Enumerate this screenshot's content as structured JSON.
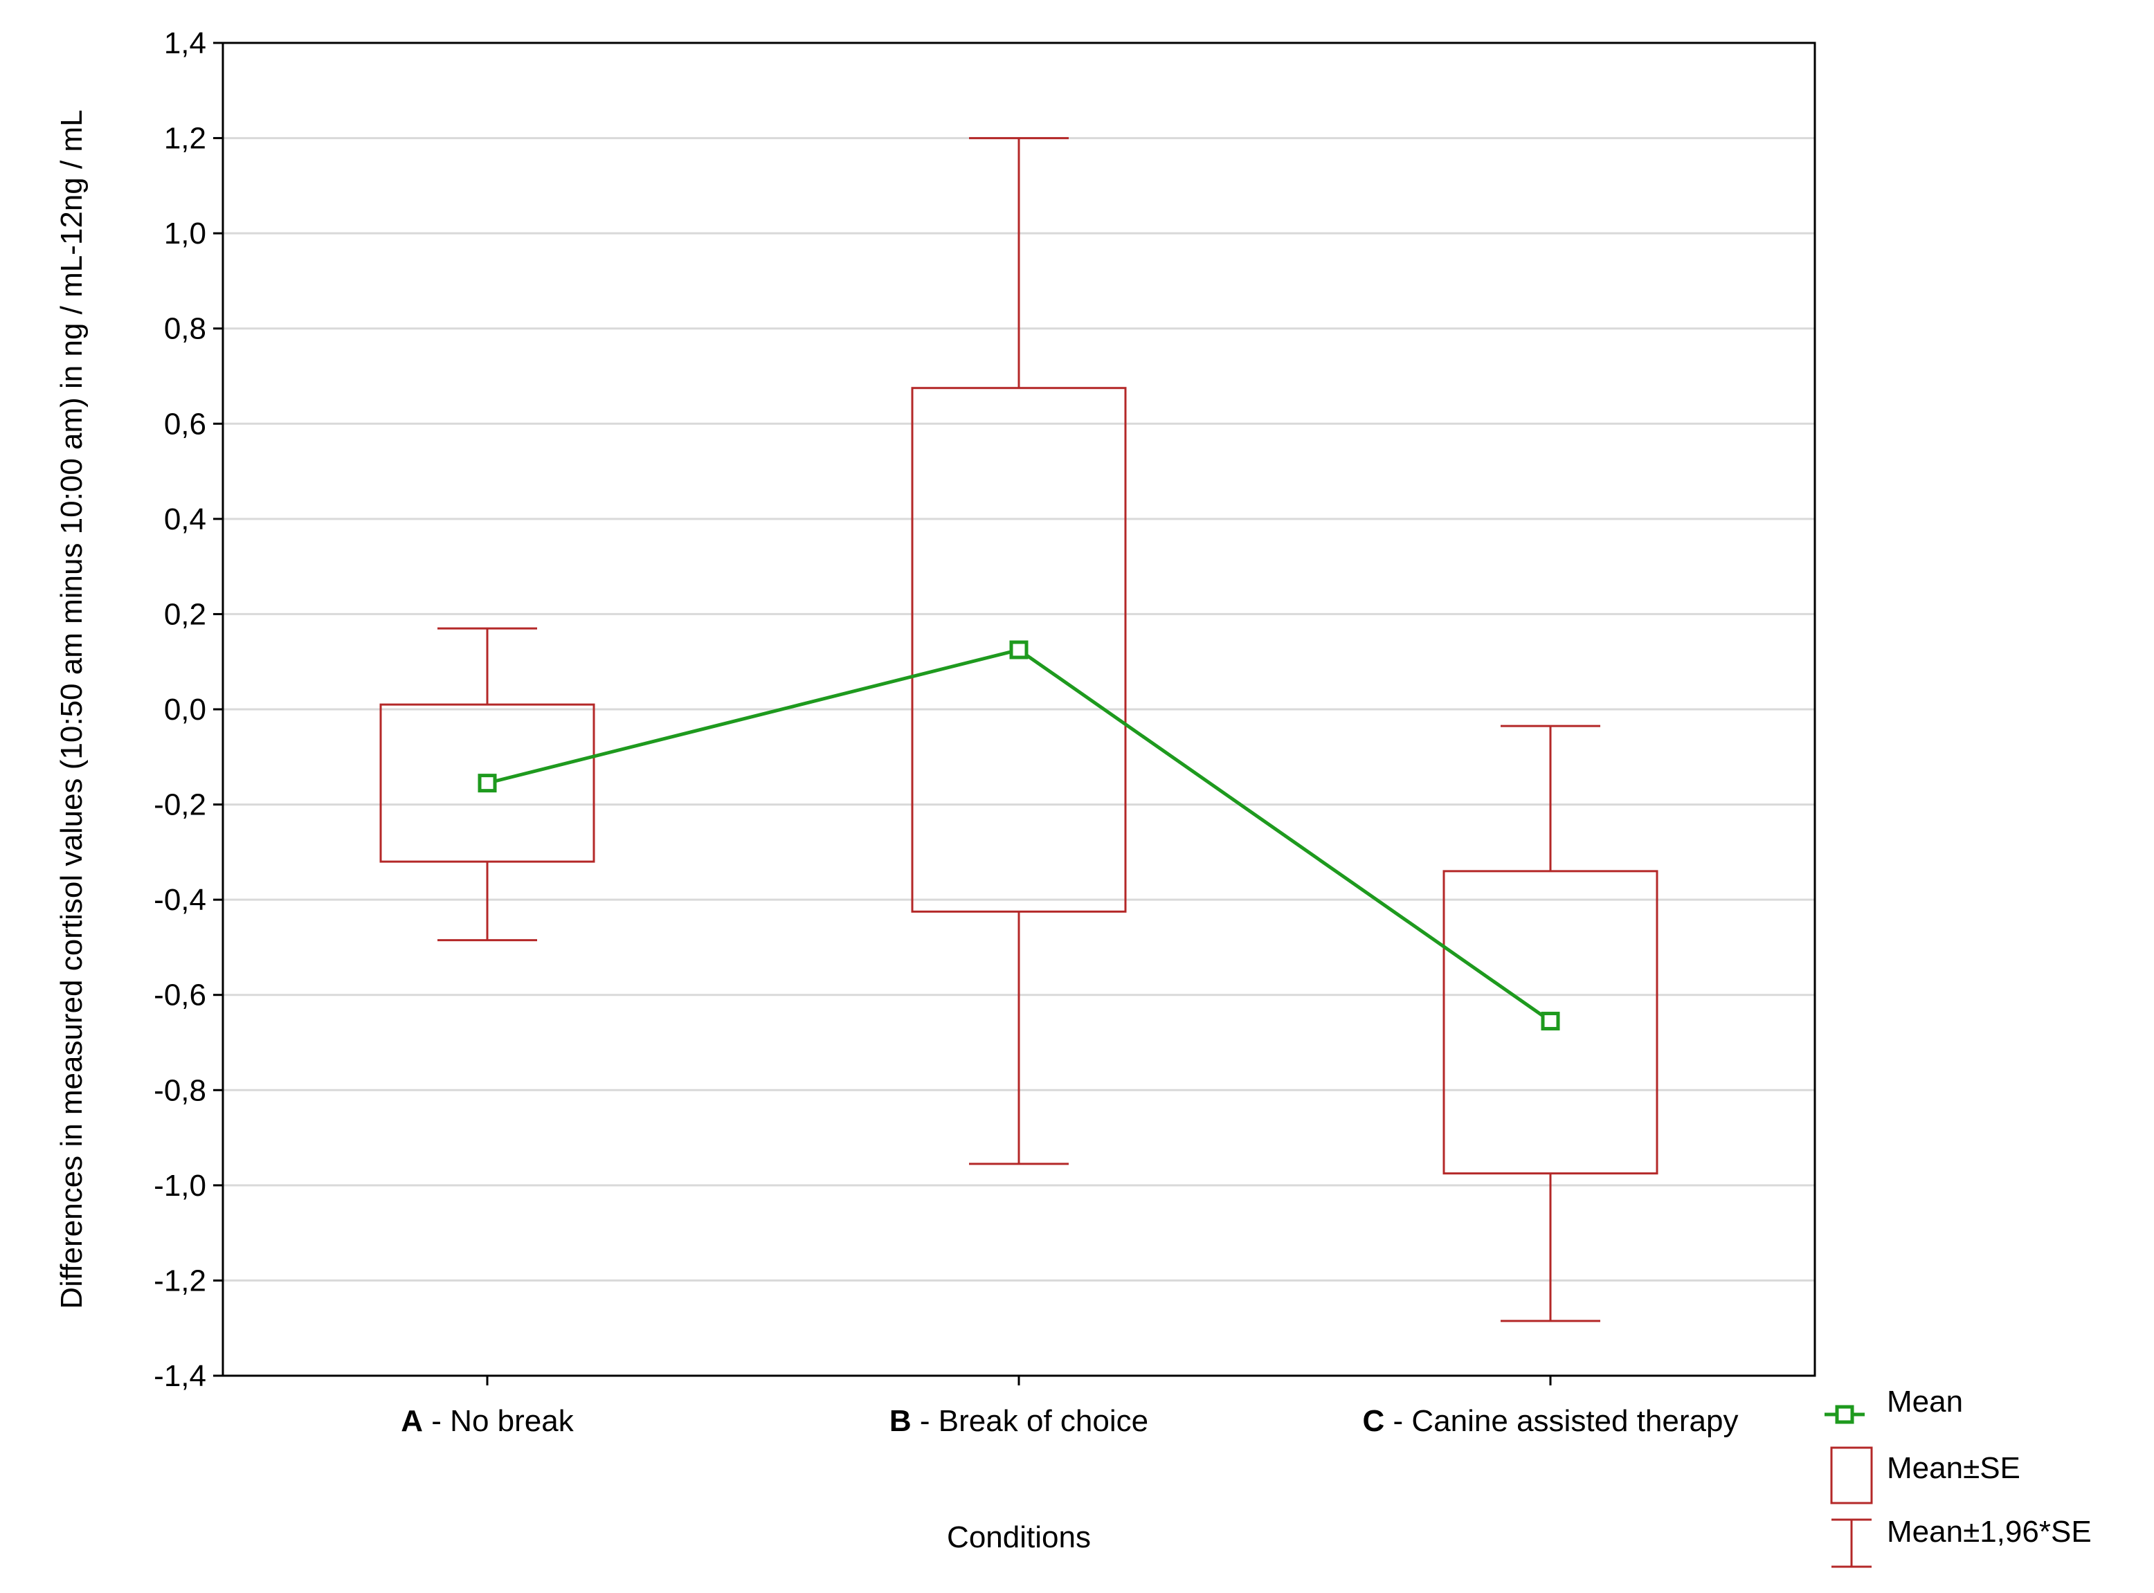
{
  "chart_data": {
    "type": "box",
    "xlabel": "Conditions",
    "ylabel": "Differences in measured cortisol values (10:50 am minus 10:00 am) in ng / mL-12ng / mL",
    "ylim": [
      -1.4,
      1.4
    ],
    "yticks": [
      "1,4",
      "1,2",
      "1,0",
      "0,8",
      "0,6",
      "0,4",
      "0,2",
      "0,0",
      "-0,2",
      "-0,4",
      "-0,6",
      "-0,8",
      "-1,0",
      "-1,2",
      "-1,4"
    ],
    "ytick_values": [
      1.4,
      1.2,
      1.0,
      0.8,
      0.6,
      0.4,
      0.2,
      0.0,
      -0.2,
      -0.4,
      -0.6,
      -0.8,
      -1.0,
      -1.2,
      -1.4
    ],
    "grid": true,
    "categories": [
      {
        "letter": "A",
        "rest": " - No break"
      },
      {
        "letter": "B",
        "rest": " - Break of choice"
      },
      {
        "letter": "C",
        "rest": " - Canine assisted therapy"
      }
    ],
    "mean": [
      -0.155,
      0.125,
      -0.655
    ],
    "se_low": [
      -0.32,
      -0.425,
      -0.975
    ],
    "se_high": [
      0.01,
      0.675,
      -0.34
    ],
    "ci_low": [
      -0.485,
      -0.955,
      -1.285
    ],
    "ci_high": [
      0.17,
      1.2,
      -0.035
    ],
    "legend": {
      "position": "right-bottom",
      "items": [
        "Mean",
        "Mean±SE",
        "Mean±1,96*SE"
      ]
    },
    "colors": {
      "mean": "#1e9a1e",
      "box": "#b42828",
      "grid": "#d9d9d9",
      "axis": "#000000"
    }
  }
}
